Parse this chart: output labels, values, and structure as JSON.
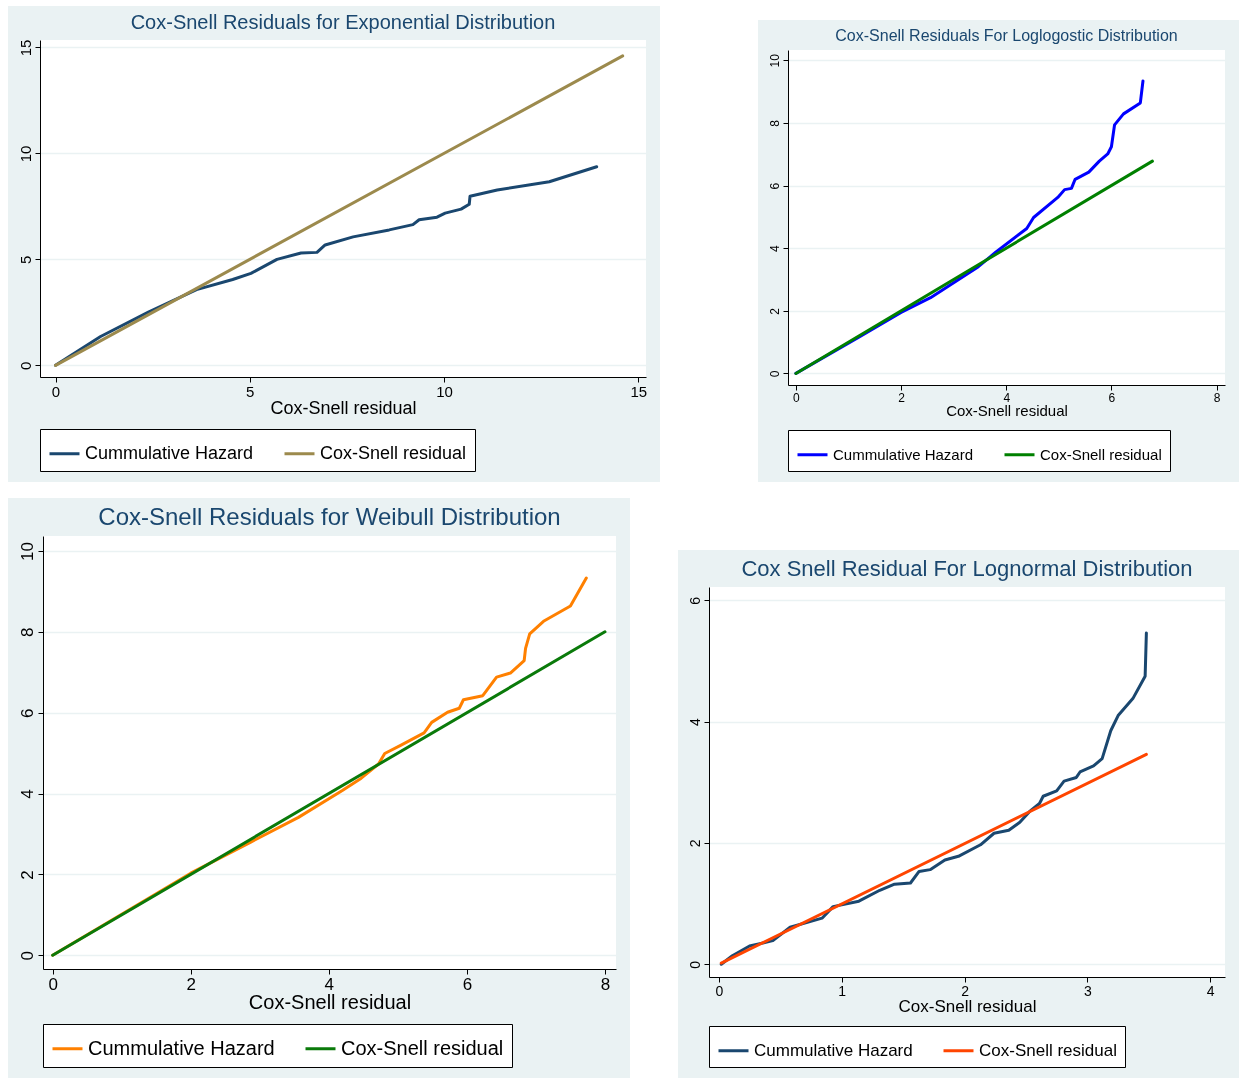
{
  "chart_data": [
    {
      "type": "line",
      "title": "Cox-Snell Residuals for Exponential Distribution",
      "xlabel": "Cox-Snell residual",
      "xlim": [
        -0.4,
        15.2
      ],
      "ylim": [
        -0.55,
        15.35
      ],
      "xticks": [
        0,
        5,
        10,
        15
      ],
      "yticks": [
        0,
        5,
        10,
        15
      ],
      "grid": "y",
      "legend": "bottom",
      "series": [
        {
          "name": "Cummulative Hazard",
          "color": "#1a476f",
          "x": [
            0,
            1.16,
            2.39,
            3.63,
            4.56,
            5.03,
            5.7,
            6.32,
            6.73,
            6.94,
            7.66,
            8.59,
            9.2,
            9.36,
            9.82,
            10.03,
            10.44,
            10.65,
            10.67,
            11.37,
            12.71,
            13.93
          ],
          "values": [
            0,
            1.36,
            2.51,
            3.57,
            4.05,
            4.34,
            5.0,
            5.3,
            5.33,
            5.68,
            6.06,
            6.39,
            6.64,
            6.87,
            6.99,
            7.18,
            7.37,
            7.6,
            7.98,
            8.27,
            8.66,
            9.37
          ]
        },
        {
          "name": "Cox-Snell residual",
          "color": "#9c8a4d",
          "x": [
            0,
            14.6
          ],
          "values": [
            0,
            14.6
          ]
        }
      ]
    },
    {
      "type": "line",
      "title": "Cox-Snell Residuals For Loglogostic Distribution",
      "xlabel": "Cox-Snell residual",
      "xlim": [
        -0.15,
        8.16
      ],
      "ylim": [
        -0.37,
        10.33
      ],
      "xticks": [
        0,
        2,
        4,
        6,
        8
      ],
      "yticks": [
        0,
        2,
        4,
        6,
        8,
        10
      ],
      "grid": "y",
      "legend": "bottom",
      "series": [
        {
          "name": "Cummulative Hazard",
          "color": "#0000ff",
          "x": [
            0,
            1.18,
            2.0,
            2.56,
            3.47,
            3.8,
            4.39,
            4.52,
            4.98,
            5.11,
            5.24,
            5.31,
            5.57,
            5.77,
            5.93,
            6.0,
            6.06,
            6.23,
            6.55,
            6.6
          ],
          "values": [
            0,
            1.14,
            1.95,
            2.42,
            3.41,
            3.87,
            4.63,
            4.98,
            5.62,
            5.87,
            5.91,
            6.2,
            6.43,
            6.78,
            7.01,
            7.24,
            7.94,
            8.29,
            8.64,
            9.34
          ]
        },
        {
          "name": "Cox-Snell residual",
          "color": "#008000",
          "x": [
            0,
            6.78
          ],
          "values": [
            0,
            6.78
          ]
        }
      ]
    },
    {
      "type": "line",
      "title": "Cox-Snell Residuals for Weibull Distribution",
      "xlabel": "Cox-Snell residual",
      "xlim": [
        -0.14,
        8.16
      ],
      "ylim": [
        -0.34,
        10.37
      ],
      "xticks": [
        0,
        2,
        4,
        6,
        8
      ],
      "yticks": [
        0,
        2,
        4,
        6,
        8,
        10
      ],
      "grid": "y",
      "legend": "bottom",
      "series": [
        {
          "name": "Cummulative Hazard",
          "color": "#ff8000",
          "x": [
            0,
            2.0,
            2.87,
            3.56,
            4.19,
            4.47,
            4.72,
            4.81,
            5.04,
            5.38,
            5.49,
            5.72,
            5.89,
            5.95,
            6.23,
            6.43,
            6.63,
            6.83,
            6.85,
            6.91,
            7.11,
            7.5,
            7.73
          ],
          "values": [
            0,
            2.03,
            2.8,
            3.41,
            4.07,
            4.38,
            4.73,
            4.99,
            5.19,
            5.5,
            5.76,
            6.01,
            6.11,
            6.32,
            6.42,
            6.88,
            6.98,
            7.29,
            7.59,
            7.95,
            8.26,
            8.64,
            9.33
          ]
        },
        {
          "name": "Cox-Snell residual",
          "color": "#0a7a0a",
          "x": [
            0,
            8
          ],
          "values": [
            0,
            8
          ]
        }
      ]
    },
    {
      "type": "line",
      "title": "Cox Snell Residual For Lognormal Distribution",
      "xlabel": "Cox-Snell residual",
      "xlim": [
        -0.08,
        4.12
      ],
      "ylim": [
        -0.21,
        6.22
      ],
      "xticks": [
        0,
        1,
        2,
        3,
        4
      ],
      "yticks": [
        0,
        2,
        4,
        6
      ],
      "grid": "y",
      "legend": "bottom",
      "series": [
        {
          "name": "Cummulative Hazard",
          "color": "#1a476f",
          "x": [
            0.02,
            0.11,
            0.25,
            0.44,
            0.58,
            0.84,
            0.93,
            1.14,
            1.31,
            1.43,
            1.56,
            1.63,
            1.72,
            1.84,
            1.95,
            2.13,
            2.24,
            2.36,
            2.45,
            2.53,
            2.61,
            2.64,
            2.75,
            2.81,
            2.91,
            2.94,
            3.05,
            3.12,
            3.19,
            3.25,
            3.37,
            3.47,
            3.48
          ],
          "values": [
            0,
            0.14,
            0.3,
            0.39,
            0.61,
            0.76,
            0.95,
            1.04,
            1.22,
            1.32,
            1.34,
            1.53,
            1.56,
            1.72,
            1.78,
            1.97,
            2.16,
            2.21,
            2.34,
            2.52,
            2.65,
            2.77,
            2.86,
            3.02,
            3.08,
            3.17,
            3.27,
            3.39,
            3.85,
            4.1,
            4.38,
            4.75,
            5.46
          ]
        },
        {
          "name": "Cox-Snell residual",
          "color": "#ff4500",
          "x": [
            0.02,
            3.48
          ],
          "values": [
            0.02,
            3.46
          ]
        }
      ]
    }
  ]
}
